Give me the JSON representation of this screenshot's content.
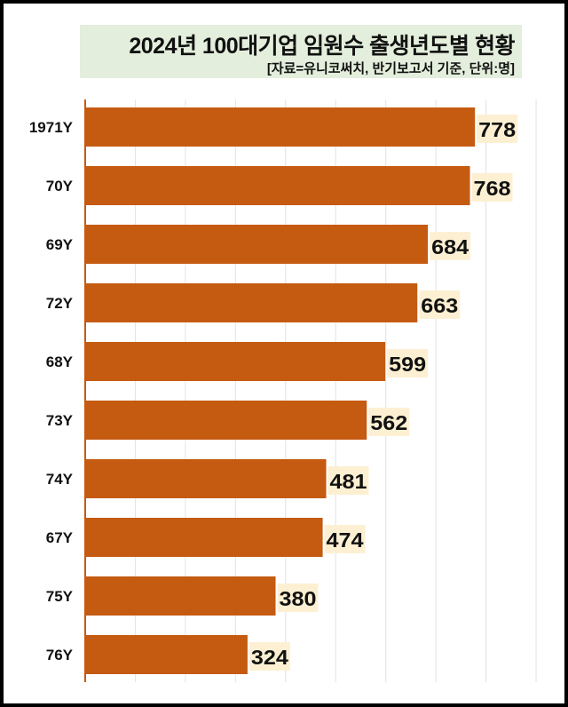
{
  "chart_data": {
    "type": "bar",
    "orientation": "horizontal",
    "title": "2024년 100대기업 임원수 출생년도별 현황",
    "subtitle": "[자료=유니코써치, 반기보고서 기준, 단위:명]",
    "categories": [
      "1971Y",
      "70Y",
      "69Y",
      "72Y",
      "68Y",
      "73Y",
      "74Y",
      "67Y",
      "75Y",
      "76Y"
    ],
    "values": [
      778,
      768,
      684,
      663,
      599,
      562,
      481,
      474,
      380,
      324
    ],
    "xlim": [
      0,
      900
    ],
    "grid": true,
    "colors": {
      "bar": "#c55a11",
      "label_bg": "#fdf0d2",
      "title_bg": "#e3eedc"
    }
  }
}
